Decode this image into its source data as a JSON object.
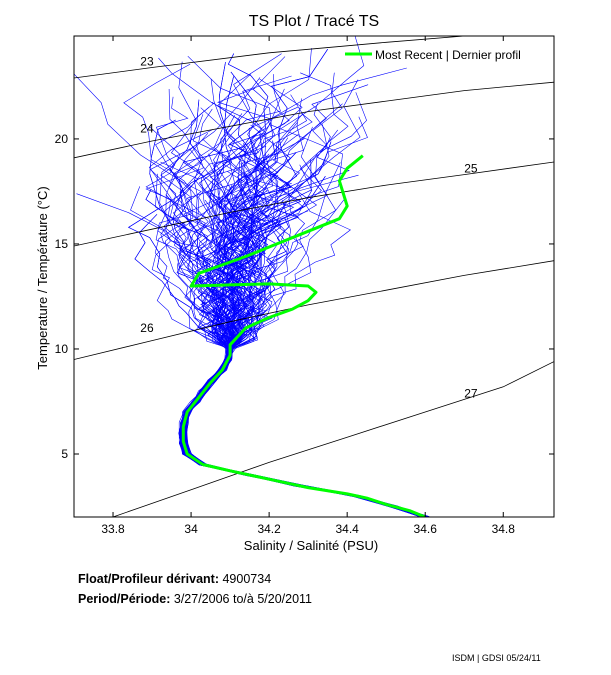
{
  "chart_data": {
    "type": "line",
    "title": "TS Plot / Tracé TS",
    "xlabel": "Salinity / Salinité (PSU)",
    "ylabel": "Temperature / Température (°C)",
    "xlim": [
      33.7,
      34.93
    ],
    "ylim": [
      2.0,
      24.9
    ],
    "xticks": [
      33.8,
      34,
      34.2,
      34.4,
      34.6,
      34.8
    ],
    "xtick_labels": [
      "33.8",
      "34",
      "34.2",
      "34.4",
      "34.6",
      "34.8"
    ],
    "yticks": [
      5,
      10,
      15,
      20
    ],
    "ytick_labels": [
      "5",
      "10",
      "15",
      "20"
    ],
    "legend": {
      "label": "Most Recent | Dernier profil",
      "position": "top-right"
    },
    "density_contours": [
      {
        "label": "23",
        "points": [
          [
            33.7,
            22.9
          ],
          [
            33.9,
            23.4
          ],
          [
            34.2,
            24.1
          ],
          [
            34.5,
            24.6
          ],
          [
            34.7,
            24.9
          ]
        ]
      },
      {
        "label": "24",
        "points": [
          [
            33.7,
            19.1
          ],
          [
            33.9,
            19.9
          ],
          [
            34.1,
            20.6
          ],
          [
            34.3,
            21.3
          ],
          [
            34.5,
            21.8
          ],
          [
            34.7,
            22.3
          ],
          [
            34.93,
            22.7
          ]
        ]
      },
      {
        "label": "25",
        "points": [
          [
            33.7,
            14.9
          ],
          [
            33.9,
            15.7
          ],
          [
            34.1,
            16.5
          ],
          [
            34.3,
            17.2
          ],
          [
            34.5,
            17.8
          ],
          [
            34.7,
            18.3
          ],
          [
            34.93,
            18.9
          ]
        ]
      },
      {
        "label": "26",
        "points": [
          [
            33.7,
            9.5
          ],
          [
            33.9,
            10.4
          ],
          [
            34.1,
            11.3
          ],
          [
            34.3,
            12.1
          ],
          [
            34.5,
            12.8
          ],
          [
            34.7,
            13.5
          ],
          [
            34.93,
            14.2
          ]
        ]
      },
      {
        "label": "27",
        "points": [
          [
            33.8,
            2.0
          ],
          [
            34.0,
            3.3
          ],
          [
            34.2,
            4.6
          ],
          [
            34.4,
            5.8
          ],
          [
            34.6,
            7.0
          ],
          [
            34.8,
            8.2
          ],
          [
            34.93,
            9.4
          ]
        ]
      }
    ],
    "series": [
      {
        "name": "Most Recent | Dernier profil",
        "color": "#00ff00",
        "points": [
          [
            34.6,
            2.0
          ],
          [
            34.56,
            2.3
          ],
          [
            34.5,
            2.6
          ],
          [
            34.45,
            2.9
          ],
          [
            34.4,
            3.1
          ],
          [
            34.3,
            3.4
          ],
          [
            34.2,
            3.8
          ],
          [
            34.1,
            4.2
          ],
          [
            34.03,
            4.5
          ],
          [
            33.99,
            5.0
          ],
          [
            33.98,
            5.6
          ],
          [
            33.98,
            6.3
          ],
          [
            33.99,
            7.0
          ],
          [
            34.02,
            7.7
          ],
          [
            34.05,
            8.4
          ],
          [
            34.08,
            9.0
          ],
          [
            34.1,
            9.7
          ],
          [
            34.1,
            10.2
          ],
          [
            34.12,
            10.6
          ],
          [
            34.14,
            11.0
          ],
          [
            34.2,
            11.5
          ],
          [
            34.26,
            11.9
          ],
          [
            34.3,
            12.3
          ],
          [
            34.32,
            12.7
          ],
          [
            34.3,
            13.0
          ],
          [
            34.2,
            13.1
          ],
          [
            34.1,
            13.05
          ],
          [
            34.0,
            13.0
          ],
          [
            34.02,
            13.6
          ],
          [
            34.08,
            14.0
          ],
          [
            34.14,
            14.4
          ],
          [
            34.22,
            15.0
          ],
          [
            34.3,
            15.6
          ],
          [
            34.38,
            16.2
          ],
          [
            34.4,
            16.8
          ],
          [
            34.39,
            17.4
          ],
          [
            34.38,
            18.0
          ],
          [
            34.4,
            18.6
          ],
          [
            34.44,
            19.2
          ]
        ]
      }
    ]
  },
  "info": {
    "float_label": "Float/Profileur dérivant:",
    "float_id": "4900734",
    "period_label": "Period/Période:",
    "period_start": "3/27/2006",
    "period_sep": "to/à",
    "period_end": "5/20/2011"
  },
  "footer": "ISDM | GDSI 05/24/11",
  "colors": {
    "profiles": "#0000ff",
    "recent": "#00ff00",
    "contours": "#000000"
  }
}
